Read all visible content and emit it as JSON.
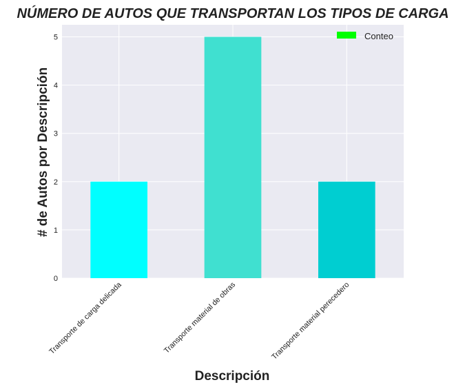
{
  "chart_data": {
    "type": "bar",
    "title": "NÚMERO DE AUTOS QUE TRANSPORTAN LOS TIPOS DE CARGA",
    "xlabel": "Descripción",
    "ylabel": "# de Autos por Descripción",
    "categories": [
      "Transporte de carga delicada",
      "Transporte material de obras",
      "Transporte material perecedero"
    ],
    "series": [
      {
        "name": "Conteo",
        "values": [
          2,
          5,
          2
        ]
      }
    ],
    "bar_colors": [
      "#00ffff",
      "#40e0d0",
      "#00ced1"
    ],
    "legend_color": "#00ff00",
    "yticks": [
      0,
      1,
      2,
      3,
      4,
      5
    ],
    "ylim": [
      0,
      5.25
    ],
    "grid": true,
    "legend_position": "top-right",
    "plot_background": "#eaeaf2"
  }
}
